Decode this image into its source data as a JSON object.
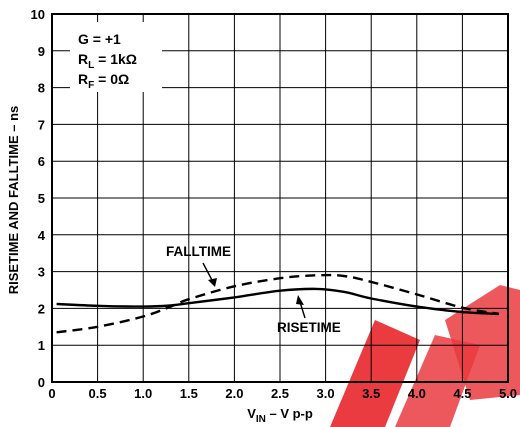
{
  "chart_data": {
    "type": "line",
    "title": "",
    "xlabel_main": "V",
    "xlabel_sub": "IN",
    "xlabel_rest": " – V p-p",
    "ylabel": "RISETIME AND FALLTIME – ns",
    "xlim": [
      0,
      5.0
    ],
    "ylim": [
      0,
      10
    ],
    "x_ticks": [
      "0",
      "0.5",
      "1.0",
      "1.5",
      "2.0",
      "2.5",
      "3.0",
      "3.5",
      "4.0",
      "4.5",
      "5.0"
    ],
    "y_ticks": [
      "0",
      "1",
      "2",
      "3",
      "4",
      "5",
      "6",
      "7",
      "8",
      "9",
      "10"
    ],
    "grid": true,
    "legend": "none",
    "conditions": [
      {
        "main": "G = +1",
        "sub": "",
        "rest": ""
      },
      {
        "main": "R",
        "sub": "L",
        "rest": " = 1kΩ"
      },
      {
        "main": "R",
        "sub": "F",
        "rest": " = 0Ω"
      }
    ],
    "series": [
      {
        "name": "RISETIME",
        "style": "solid",
        "x": [
          0.05,
          0.5,
          1.0,
          1.3,
          1.5,
          2.0,
          2.5,
          2.9,
          3.2,
          3.5,
          4.0,
          4.5,
          4.9
        ],
        "y": [
          2.12,
          2.07,
          2.05,
          2.08,
          2.14,
          2.3,
          2.48,
          2.53,
          2.45,
          2.27,
          2.05,
          1.9,
          1.85
        ]
      },
      {
        "name": "FALLTIME",
        "style": "dashed",
        "x": [
          0.05,
          0.5,
          1.0,
          1.3,
          1.5,
          2.0,
          2.5,
          2.9,
          3.2,
          3.5,
          4.0,
          4.5,
          4.9
        ],
        "y": [
          1.35,
          1.5,
          1.78,
          2.05,
          2.25,
          2.6,
          2.82,
          2.9,
          2.88,
          2.72,
          2.38,
          2.02,
          1.85
        ]
      }
    ]
  },
  "colors": {
    "line": "#000000",
    "grid": "#000000",
    "watermark": "#e8262b"
  }
}
